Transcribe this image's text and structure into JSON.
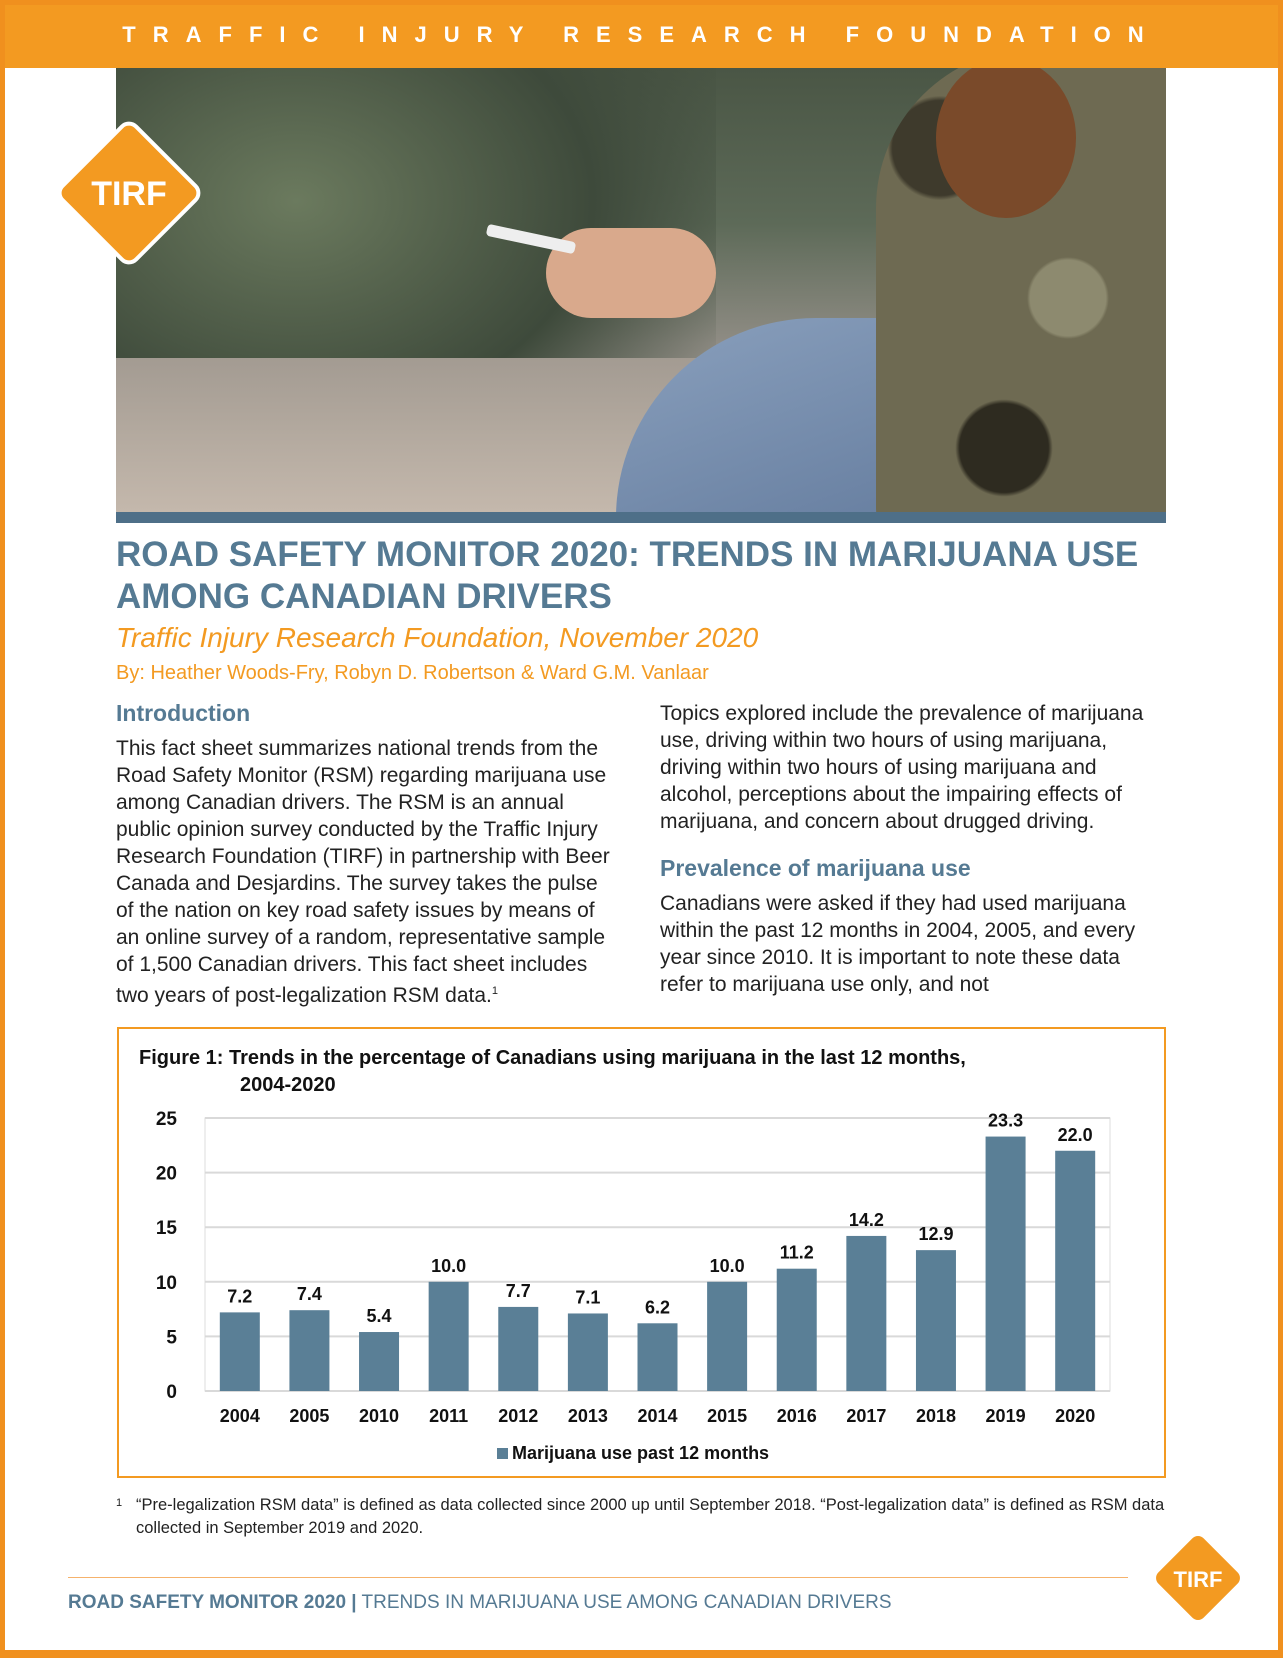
{
  "header": {
    "org": "TRAFFIC INJURY RESEARCH FOUNDATION",
    "logo_text": "TIRF"
  },
  "title": "ROAD SAFETY MONITOR 2020: TRENDS IN MARIJUANA USE AMONG CANADIAN DRIVERS",
  "subtitle": "Traffic Injury Research Foundation, November 2020",
  "byline": "By: Heather Woods-Fry, Robyn D. Robertson & Ward G.M. Vanlaar",
  "intro": {
    "heading": "Introduction",
    "text": "This fact sheet summarizes national trends from the Road Safety Monitor (RSM) regarding marijuana use among Canadian drivers. The RSM is an annual public opinion survey conducted by the Traffic Injury Research Foundation (TIRF) in partnership with Beer Canada and Desjardins. The survey takes the pulse of the nation on key road safety issues by means of an online survey of a random, representative sample of 1,500 Canadian drivers. This fact sheet includes two years of post-legalization RSM data.",
    "footnote_ref": "1"
  },
  "right": {
    "text": "Topics explored include the prevalence of marijuana use, driving within two hours of using marijuana, driving within two hours of using marijuana and alcohol, perceptions about the impairing effects of marijuana, and concern about drugged driving.",
    "heading": "Prevalence of marijuana use",
    "text2": "Canadians were asked if they had used marijuana within the past 12 months in 2004, 2005, and every year since 2010. It is important to note these data refer to marijuana use only, and not"
  },
  "chart_data": {
    "type": "bar",
    "title_line1": "Figure 1:  Trends in the percentage of Canadians using marijuana in the last 12 months,",
    "title_line2": "2004-2020",
    "categories": [
      "2004",
      "2005",
      "2010",
      "2011",
      "2012",
      "2013",
      "2014",
      "2015",
      "2016",
      "2017",
      "2018",
      "2019",
      "2020"
    ],
    "series": [
      {
        "name": "Marijuana use past 12 months",
        "values": [
          7.2,
          7.4,
          5.4,
          10.0,
          7.7,
          7.1,
          6.2,
          10.0,
          11.2,
          14.2,
          12.9,
          23.3,
          22.0
        ],
        "color": "#5a7f96"
      }
    ],
    "yticks": [
      0,
      5,
      10,
      15,
      20,
      25
    ],
    "ylim": [
      0,
      25
    ],
    "grid": true,
    "legend": "bottom"
  },
  "footnote": {
    "mark": "1",
    "text": "“Pre-legalization RSM data” is defined as data collected since 2000 up until September 2018. “Post-legalization data” is defined as RSM data collected in September 2019 and 2020."
  },
  "footer": {
    "bold": "ROAD SAFETY MONITOR 2020 |",
    "rest": " TRENDS IN MARIJUANA USE AMONG CANADIAN DRIVERS"
  },
  "colors": {
    "orange": "#f39a21",
    "blue": "#557a93"
  }
}
